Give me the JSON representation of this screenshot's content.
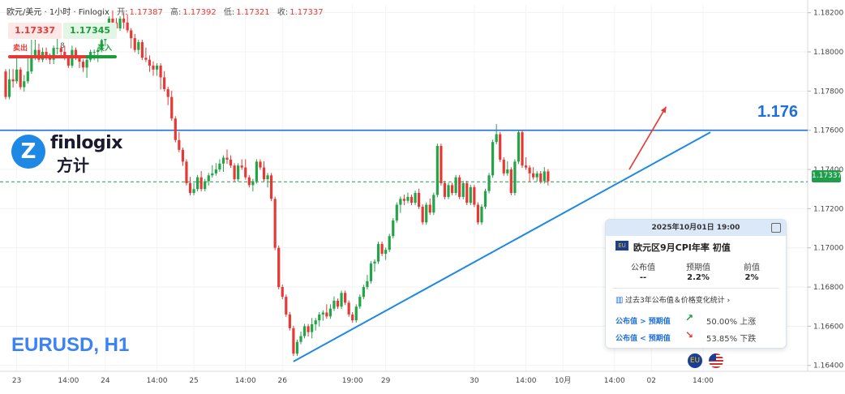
{
  "header": {
    "title": "欧元/美元 · 1小时 · Finlogix",
    "open_label": "开:",
    "open": "1.17387",
    "high_label": "高:",
    "high": "1.17392",
    "low_label": "低:",
    "low": "1.17321",
    "close_label": "收:",
    "close": "1.17337"
  },
  "trade": {
    "sell_price": "1.17337",
    "buy_price": "1.17345",
    "sell_label": "卖出",
    "buy_label": "买入",
    "spread": "8"
  },
  "logo": {
    "name": "finlogix",
    "cn": "方计",
    "mark": "Z"
  },
  "symbol_label": "EURUSD, H1",
  "level_label": "1.176",
  "current_price_tag": "1.17337",
  "event": {
    "date": "2025年10月01日 19:00",
    "title": "欧元区9月CPI年率 初值",
    "flag_text": "EU",
    "col_actual": "公布值",
    "col_forecast": "预期值",
    "col_previous": "前值",
    "actual": "--",
    "forecast": "2.2%",
    "previous": "2%",
    "history_link": "过去3年公布值＆价格变化统计",
    "history_chevron": "›",
    "row1_label": "公布值 > 预期值",
    "row1_stat": "50.00% 上涨",
    "row2_label": "公布值 < 预期值",
    "row2_stat": "53.85% 下跌",
    "up_color": "#1a9c3a",
    "down_color": "#e53935"
  },
  "flags": {
    "eu": "EU",
    "us": "US"
  },
  "colors": {
    "up": "#22a447",
    "down": "#e53935",
    "level": "#1e6fd9",
    "trend": "#1e88e5",
    "arrow": "#e53935",
    "current": "#1e9e4a"
  },
  "chart_data": {
    "type": "candlestick",
    "symbol": "EURUSD",
    "timeframe": "H1",
    "y_ticks": [
      "1.18200",
      "1.18000",
      "1.17800",
      "1.17600",
      "1.17400",
      "1.17200",
      "1.17000",
      "1.16800",
      "1.16600",
      "1.16400"
    ],
    "ylim": [
      1.1637,
      1.1824
    ],
    "x_ticks": [
      {
        "label": "23",
        "bar": 3
      },
      {
        "label": "14:00",
        "bar": 17
      },
      {
        "label": "24",
        "bar": 27
      },
      {
        "label": "14:00",
        "bar": 41
      },
      {
        "label": "25",
        "bar": 51
      },
      {
        "label": "14:00",
        "bar": 65
      },
      {
        "label": "26",
        "bar": 75
      },
      {
        "label": "19:00",
        "bar": 94
      },
      {
        "label": "29",
        "bar": 103
      },
      {
        "label": "30",
        "bar": 127
      },
      {
        "label": "14:00",
        "bar": 141
      },
      {
        "label": "10月",
        "bar": 151
      },
      {
        "label": "14:00",
        "bar": 165
      },
      {
        "label": "02",
        "bar": 175
      },
      {
        "label": "14:00",
        "bar": 189
      }
    ],
    "resistance_level": 1.176,
    "current_price": 1.17337,
    "trendline": {
      "from": {
        "bar": 78,
        "price": 1.1642
      },
      "to": {
        "bar": 191,
        "price": 1.1759
      }
    },
    "projection_arrow": {
      "from": {
        "bar": 169,
        "price": 1.174
      },
      "to": {
        "bar": 179,
        "price": 1.1772
      }
    },
    "candles_ohlc": [
      [
        1.179,
        1.1785,
        1.1782,
        1.1777
      ],
      [
        1.1777,
        1.179,
        1.179,
        1.1786
      ],
      [
        1.1786,
        1.179,
        1.1783,
        1.1785
      ],
      [
        1.1785,
        1.1793,
        1.1797,
        1.1791
      ],
      [
        1.1791,
        1.179,
        1.1784,
        1.1782
      ],
      [
        1.1782,
        1.1781,
        1.1787,
        1.1785
      ],
      [
        1.1785,
        1.1785,
        1.1797,
        1.179
      ],
      [
        1.179,
        1.1793,
        1.1805,
        1.1797
      ],
      [
        1.1797,
        1.18,
        1.1805,
        1.1801
      ],
      [
        1.1801,
        1.1803,
        1.1799,
        1.1796
      ],
      [
        1.1796,
        1.1801,
        1.1797,
        1.18
      ],
      [
        1.18,
        1.1801,
        1.1797,
        1.1798
      ],
      [
        1.1798,
        1.1797,
        1.1795,
        1.1796
      ],
      [
        1.1796,
        1.1795,
        1.18,
        1.1802
      ],
      [
        1.1802,
        1.1807,
        1.18,
        1.1802
      ],
      [
        1.1802,
        1.1801,
        1.1798,
        1.18
      ],
      [
        1.18,
        1.1802,
        1.1801,
        1.1797
      ],
      [
        1.1797,
        1.1796,
        1.1797,
        1.1793
      ],
      [
        1.1793,
        1.1795,
        1.1802,
        1.1801
      ],
      [
        1.1801,
        1.1798,
        1.1799,
        1.1797
      ],
      [
        1.1797,
        1.1795,
        1.1793,
        1.1795
      ],
      [
        1.1795,
        1.1794,
        1.1791,
        1.1792
      ],
      [
        1.1792,
        1.1788,
        1.1791,
        1.1796
      ],
      [
        1.1796,
        1.1797,
        1.1799,
        1.18
      ],
      [
        1.18,
        1.1798,
        1.1797,
        1.18
      ],
      [
        1.18,
        1.1796,
        1.1799,
        1.1801
      ],
      [
        1.1801,
        1.1802,
        1.1807,
        1.1806
      ],
      [
        1.1806,
        1.1804,
        1.1809,
        1.1812
      ],
      [
        1.1812,
        1.1815,
        1.1808,
        1.1817
      ],
      [
        1.1817,
        1.182,
        1.1813,
        1.1815
      ],
      [
        1.1815,
        1.1816,
        1.1814,
        1.1812
      ],
      [
        1.1812,
        1.1815,
        1.1814,
        1.1817
      ],
      [
        1.1817,
        1.1819,
        1.1813,
        1.1815
      ],
      [
        1.1815,
        1.1818,
        1.1812,
        1.1811
      ],
      [
        1.1811,
        1.1808,
        1.1803,
        1.1807
      ],
      [
        1.1807,
        1.1808,
        1.1804,
        1.1801
      ],
      [
        1.1801,
        1.18,
        1.1801,
        1.1805
      ],
      [
        1.1805,
        1.1802,
        1.1799,
        1.1797
      ],
      [
        1.1797,
        1.18,
        1.1801,
        1.1796
      ],
      [
        1.1796,
        1.1797,
        1.1791,
        1.1793
      ],
      [
        1.1793,
        1.1794,
        1.1789,
        1.1791
      ],
      [
        1.1791,
        1.1793,
        1.1789,
        1.1793
      ],
      [
        1.1793,
        1.1791,
        1.1782,
        1.1787
      ],
      [
        1.1787,
        1.1789,
        1.1785,
        1.1781
      ],
      [
        1.1781,
        1.1775,
        1.1774,
        1.1777
      ],
      [
        1.1777,
        1.1779,
        1.1772,
        1.1766
      ],
      [
        1.1766,
        1.1761,
        1.1759,
        1.1755
      ],
      [
        1.1755,
        1.1758,
        1.1754,
        1.175
      ],
      [
        1.175,
        1.1749,
        1.1743,
        1.1744
      ],
      [
        1.1744,
        1.1742,
        1.1736,
        1.1733
      ],
      [
        1.1733,
        1.1735,
        1.1731,
        1.1728
      ],
      [
        1.1728,
        1.1732,
        1.1729,
        1.173
      ],
      [
        1.173,
        1.1735,
        1.1734,
        1.1736
      ],
      [
        1.1736,
        1.1738,
        1.1732,
        1.173
      ],
      [
        1.173,
        1.1731,
        1.1734,
        1.1734
      ],
      [
        1.1734,
        1.1733,
        1.1735,
        1.1737
      ],
      [
        1.1737,
        1.1738,
        1.1741,
        1.1738
      ],
      [
        1.1738,
        1.1742,
        1.1741,
        1.174
      ],
      [
        1.174,
        1.1743,
        1.1744,
        1.1743
      ],
      [
        1.1743,
        1.174,
        1.1744,
        1.1746
      ],
      [
        1.1746,
        1.1749,
        1.1744,
        1.1745
      ],
      [
        1.1745,
        1.1746,
        1.1742,
        1.1742
      ],
      [
        1.1742,
        1.1738,
        1.174,
        1.1735
      ],
      [
        1.1735,
        1.1737,
        1.174,
        1.1742
      ],
      [
        1.1742,
        1.1744,
        1.1742,
        1.1741
      ],
      [
        1.1741,
        1.1744,
        1.1738,
        1.1736
      ],
      [
        1.1736,
        1.1733,
        1.1733,
        1.1732
      ],
      [
        1.1732,
        1.173,
        1.1731,
        1.1734
      ],
      [
        1.1734,
        1.1736,
        1.174,
        1.1744
      ],
      [
        1.1744,
        1.1742,
        1.1742,
        1.1741
      ],
      [
        1.1741,
        1.1743,
        1.1738,
        1.1735
      ],
      [
        1.1735,
        1.1732,
        1.1733,
        1.1737
      ],
      [
        1.1737,
        1.1734,
        1.1728,
        1.1725
      ],
      [
        1.1725,
        1.1718,
        1.1706,
        1.17
      ],
      [
        1.17,
        1.1693,
        1.1686,
        1.168
      ],
      [
        1.168,
        1.1679,
        1.1678,
        1.1675
      ],
      [
        1.1675,
        1.167,
        1.1667,
        1.1666
      ],
      [
        1.1666,
        1.1665,
        1.1661,
        1.1659
      ],
      [
        1.1659,
        1.1654,
        1.1649,
        1.1646
      ],
      [
        1.1646,
        1.165,
        1.1648,
        1.1652
      ],
      [
        1.1652,
        1.1654,
        1.1656,
        1.1655
      ],
      [
        1.1655,
        1.1658,
        1.1658,
        1.166
      ],
      [
        1.166,
        1.1656,
        1.1659,
        1.1657
      ],
      [
        1.1657,
        1.1655,
        1.1663,
        1.1661
      ],
      [
        1.1661,
        1.1659,
        1.1662,
        1.1663
      ],
      [
        1.1663,
        1.1661,
        1.1663,
        1.1666
      ],
      [
        1.1666,
        1.1664,
        1.1665,
        1.1667
      ],
      [
        1.1667,
        1.167,
        1.1666,
        1.1665
      ],
      [
        1.1665,
        1.1668,
        1.167,
        1.1669
      ],
      [
        1.1669,
        1.1672,
        1.1674,
        1.1673
      ],
      [
        1.1673,
        1.1671,
        1.1672,
        1.167
      ],
      [
        1.167,
        1.1673,
        1.1675,
        1.1677
      ],
      [
        1.1677,
        1.1675,
        1.1673,
        1.1672
      ],
      [
        1.1672,
        1.167,
        1.1669,
        1.1666
      ],
      [
        1.1666,
        1.1663,
        1.1665,
        1.1663
      ],
      [
        1.1663,
        1.1668,
        1.1669,
        1.167
      ],
      [
        1.167,
        1.1674,
        1.1672,
        1.1675
      ],
      [
        1.1675,
        1.1677,
        1.1678,
        1.168
      ],
      [
        1.168,
        1.1682,
        1.1685,
        1.1683
      ],
      [
        1.1683,
        1.1686,
        1.169,
        1.1692
      ],
      [
        1.1692,
        1.1689,
        1.1692,
        1.1693
      ],
      [
        1.1693,
        1.1698,
        1.17,
        1.1702
      ],
      [
        1.1702,
        1.17,
        1.1699,
        1.1697
      ],
      [
        1.1697,
        1.1695,
        1.1696,
        1.1699
      ],
      [
        1.1699,
        1.1702,
        1.1704,
        1.1706
      ],
      [
        1.1706,
        1.1709,
        1.1712,
        1.1714
      ],
      [
        1.1714,
        1.1716,
        1.172,
        1.1722
      ],
      [
        1.1722,
        1.1719,
        1.1723,
        1.1725
      ],
      [
        1.1725,
        1.1723,
        1.1726,
        1.1724
      ],
      [
        1.1724,
        1.1726,
        1.1727,
        1.1726
      ],
      [
        1.1726,
        1.1725,
        1.1724,
        1.1723
      ],
      [
        1.1723,
        1.1724,
        1.1726,
        1.1728
      ],
      [
        1.1728,
        1.1729,
        1.1724,
        1.1721
      ],
      [
        1.1721,
        1.1718,
        1.1716,
        1.1713
      ],
      [
        1.1713,
        1.1718,
        1.1719,
        1.1722
      ],
      [
        1.1722,
        1.1724,
        1.172,
        1.1718
      ],
      [
        1.1718,
        1.172,
        1.1722,
        1.1727
      ],
      [
        1.1727,
        1.1737,
        1.1743,
        1.1752
      ],
      [
        1.1752,
        1.1746,
        1.1738,
        1.1733
      ],
      [
        1.1733,
        1.1731,
        1.1728,
        1.1726
      ],
      [
        1.1726,
        1.1728,
        1.1731,
        1.1732
      ],
      [
        1.1732,
        1.173,
        1.1729,
        1.1728
      ],
      [
        1.1728,
        1.1731,
        1.1734,
        1.1736
      ],
      [
        1.1736,
        1.1733,
        1.173,
        1.1726
      ],
      [
        1.1726,
        1.1729,
        1.1731,
        1.1733
      ],
      [
        1.1733,
        1.173,
        1.1727,
        1.1723
      ],
      [
        1.1723,
        1.1725,
        1.1728,
        1.1731
      ],
      [
        1.1731,
        1.1729,
        1.1726,
        1.1722
      ],
      [
        1.1722,
        1.172,
        1.1717,
        1.1713
      ],
      [
        1.1713,
        1.1716,
        1.1718,
        1.1721
      ],
      [
        1.1721,
        1.1723,
        1.1727,
        1.1729
      ],
      [
        1.1729,
        1.1731,
        1.1734,
        1.1737
      ],
      [
        1.1737,
        1.174,
        1.1745,
        1.1754
      ],
      [
        1.1754,
        1.1759,
        1.1762,
        1.1758
      ],
      [
        1.1758,
        1.1753,
        1.175,
        1.1745
      ],
      [
        1.1745,
        1.1742,
        1.174,
        1.1738
      ],
      [
        1.1738,
        1.1741,
        1.1743,
        1.174
      ],
      [
        1.174,
        1.1738,
        1.1732,
        1.1728
      ],
      [
        1.1728,
        1.1733,
        1.1739,
        1.1744
      ],
      [
        1.1744,
        1.175,
        1.1756,
        1.1759
      ],
      [
        1.1759,
        1.1752,
        1.1747,
        1.1742
      ],
      [
        1.1742,
        1.1744,
        1.1745,
        1.1741
      ],
      [
        1.1741,
        1.1738,
        1.1735,
        1.1738
      ],
      [
        1.1738,
        1.174,
        1.1737,
        1.1736
      ],
      [
        1.1736,
        1.1735,
        1.1736,
        1.1738
      ],
      [
        1.1738,
        1.1737,
        1.1736,
        1.1734
      ],
      [
        1.1734,
        1.1738,
        1.174,
        1.1739
      ],
      [
        1.1739,
        1.1736,
        1.1733,
        1.1734
      ]
    ]
  }
}
